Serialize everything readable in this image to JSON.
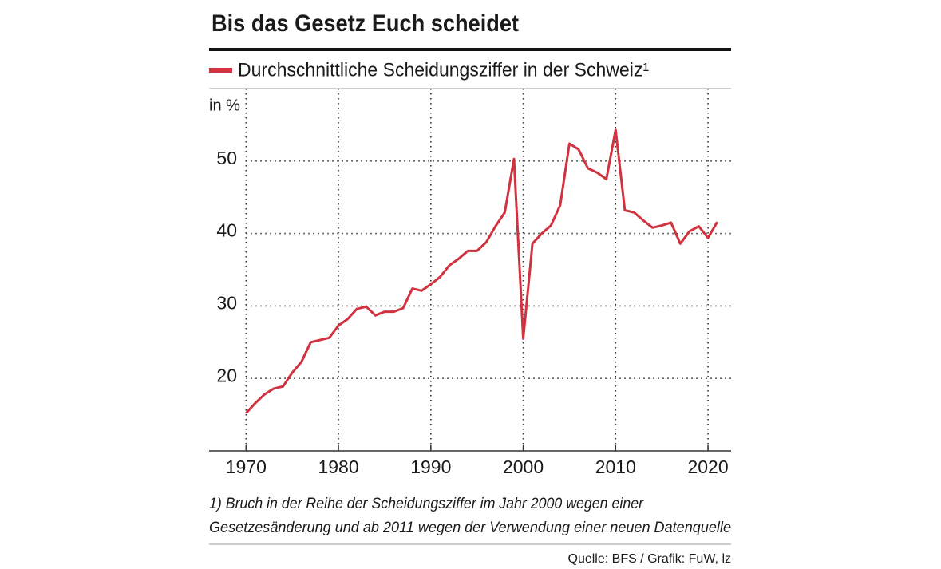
{
  "chart_data": {
    "type": "line",
    "title": "Bis das Gesetz Euch scheidet",
    "ylabel": "in %",
    "x": [
      1970,
      1971,
      1972,
      1973,
      1974,
      1975,
      1976,
      1977,
      1978,
      1979,
      1980,
      1981,
      1982,
      1983,
      1984,
      1985,
      1986,
      1987,
      1988,
      1989,
      1990,
      1991,
      1992,
      1993,
      1994,
      1995,
      1996,
      1997,
      1998,
      1999,
      2000,
      2001,
      2002,
      2003,
      2004,
      2005,
      2006,
      2007,
      2008,
      2009,
      2010,
      2011,
      2012,
      2013,
      2014,
      2015,
      2016,
      2017,
      2018,
      2019,
      2020,
      2021
    ],
    "series": [
      {
        "name": "Durchschnittliche Scheidungsziffer in der Schweiz¹",
        "color": "#d0323f",
        "values": [
          15.2,
          16.6,
          17.8,
          18.6,
          18.9,
          20.8,
          22.3,
          25.0,
          25.3,
          25.6,
          27.3,
          28.2,
          29.6,
          29.9,
          28.7,
          29.2,
          29.2,
          29.7,
          32.4,
          32.1,
          33.0,
          34.0,
          35.6,
          36.5,
          37.6,
          37.6,
          38.8,
          41.0,
          42.9,
          50.3,
          25.5,
          38.6,
          40.0,
          41.1,
          43.9,
          52.4,
          51.6,
          49.0,
          48.4,
          47.5,
          54.3,
          43.2,
          42.9,
          41.8,
          40.8,
          41.1,
          41.5,
          38.6,
          40.3,
          41.0,
          39.4,
          41.6
        ]
      }
    ],
    "xlim": [
      1966,
      2022.5
    ],
    "xticks": [
      1970,
      1980,
      1990,
      2000,
      2010,
      2020
    ],
    "ylim": [
      10,
      60
    ],
    "yticks": [
      20,
      30,
      40,
      50
    ],
    "grid": true,
    "notes": [
      "1) Bruch in der Reihe der Scheidungsziffer im Jahr 2000 wegen einer",
      "Gesetzesänderung und ab 2011 wegen der Verwendung einer neuen Datenquelle"
    ],
    "source": "Quelle: BFS / Grafik: FuW, lz"
  }
}
